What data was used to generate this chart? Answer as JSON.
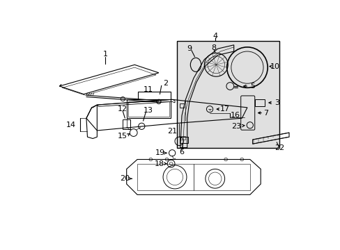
{
  "bg_color": "#ffffff",
  "lc": "#000000",
  "box_fill": "#e0e0e0",
  "figsize": [
    4.89,
    3.6
  ],
  "dpi": 100
}
